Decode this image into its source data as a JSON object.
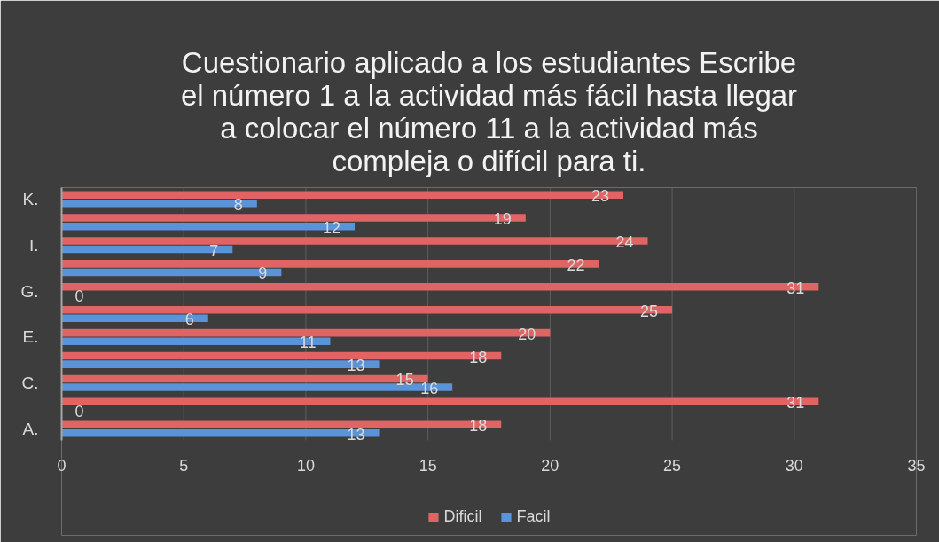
{
  "chart_data": {
    "type": "bar",
    "orientation": "horizontal",
    "title": "Cuestionario aplicado a los estudiantes Escribe el número 1 a la actividad más fácil hasta llegar a colocar el número 11 a la actividad más compleja o difícil para ti.",
    "categories": [
      "K.",
      null,
      "I.",
      null,
      "G.",
      null,
      "E.",
      null,
      "C.",
      null,
      "A."
    ],
    "series": [
      {
        "name": "Dificil",
        "color": "#e06464",
        "values": [
          23,
          19,
          24,
          22,
          31,
          25,
          20,
          18,
          15,
          31,
          18
        ]
      },
      {
        "name": "Facil",
        "color": "#5a93d8",
        "values": [
          8,
          12,
          7,
          9,
          0,
          6,
          11,
          13,
          16,
          0,
          13
        ]
      }
    ],
    "xlim": [
      0,
      35
    ],
    "xticks": [
      0,
      5,
      10,
      15,
      20,
      25,
      30,
      35
    ],
    "grid": "x",
    "legend": "bottom",
    "data_labels": true
  }
}
